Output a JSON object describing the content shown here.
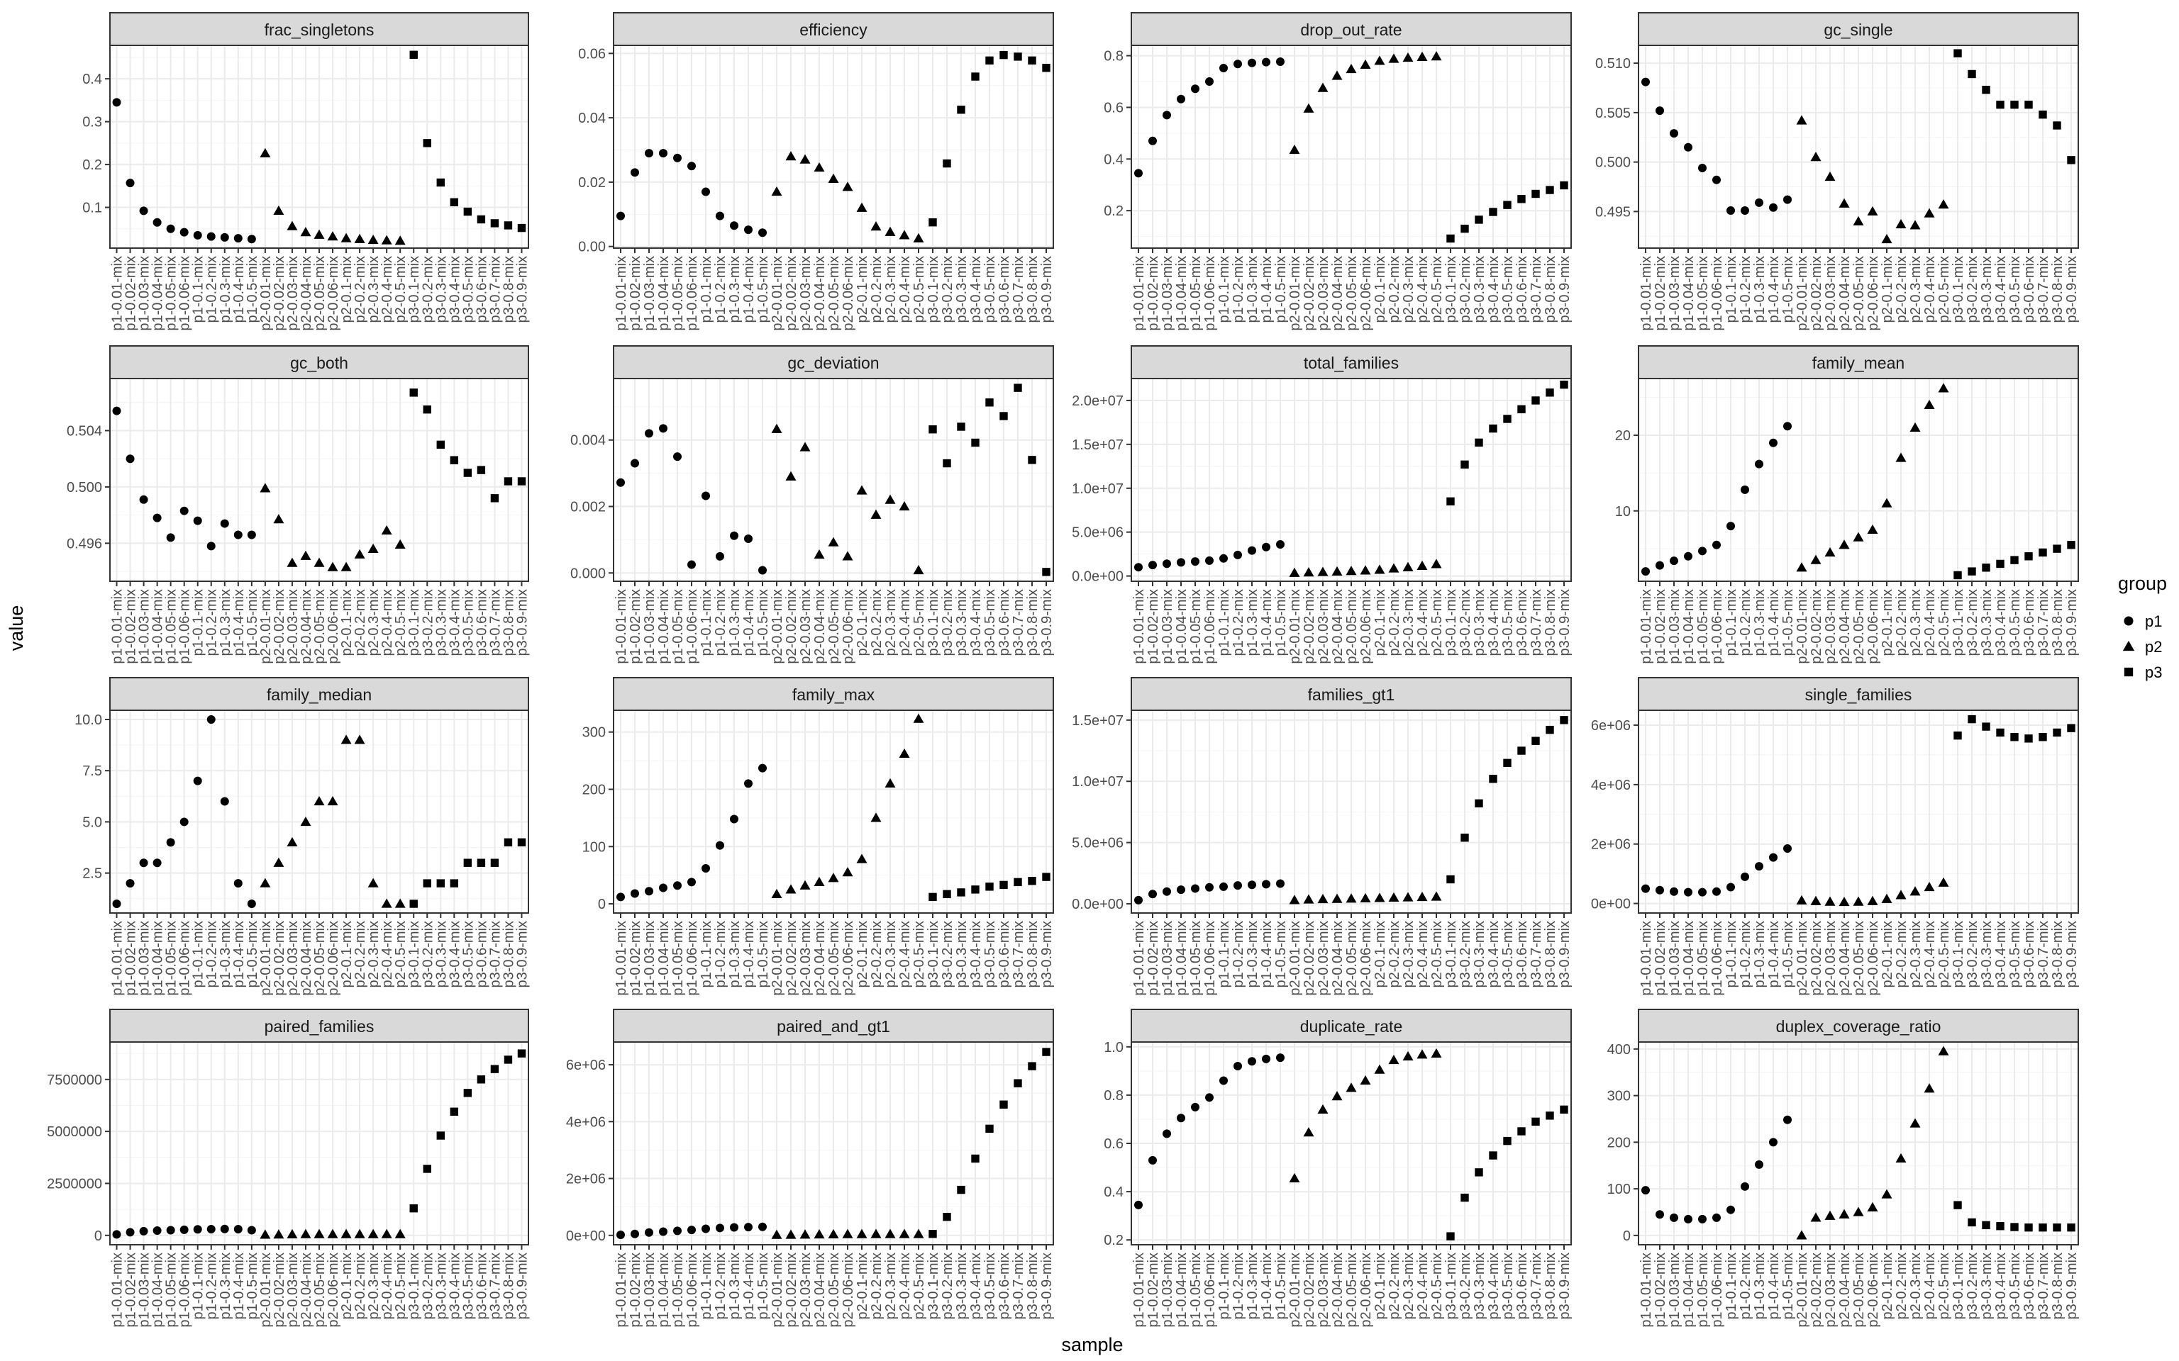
{
  "chart_data": {
    "type": "scatter",
    "layout": "faceted 4x4 grid, free y scales",
    "xlabel": "sample",
    "ylabel": "value",
    "legend": {
      "title": "group",
      "position": "right",
      "entries": [
        {
          "name": "p1",
          "shape": "circle"
        },
        {
          "name": "p2",
          "shape": "triangle"
        },
        {
          "name": "p3",
          "shape": "square"
        }
      ]
    },
    "grid": true,
    "categories": [
      "p1-0.01-mix",
      "p1-0.02-mix",
      "p1-0.03-mix",
      "p1-0.04-mix",
      "p1-0.05-mix",
      "p1-0.06-mix",
      "p1-0.1-mix",
      "p1-0.2-mix",
      "p1-0.3-mix",
      "p1-0.4-mix",
      "p1-0.5-mix",
      "p2-0.01-mix",
      "p2-0.02-mix",
      "p2-0.03-mix",
      "p2-0.04-mix",
      "p2-0.05-mix",
      "p2-0.06-mix",
      "p2-0.1-mix",
      "p2-0.2-mix",
      "p2-0.3-mix",
      "p2-0.4-mix",
      "p2-0.5-mix",
      "p3-0.1-mix",
      "p3-0.2-mix",
      "p3-0.3-mix",
      "p3-0.4-mix",
      "p3-0.5-mix",
      "p3-0.6-mix",
      "p3-0.7-mix",
      "p3-0.8-mix",
      "p3-0.9-mix"
    ],
    "groups": [
      "p1",
      "p1",
      "p1",
      "p1",
      "p1",
      "p1",
      "p1",
      "p1",
      "p1",
      "p1",
      "p1",
      "p2",
      "p2",
      "p2",
      "p2",
      "p2",
      "p2",
      "p2",
      "p2",
      "p2",
      "p2",
      "p2",
      "p3",
      "p3",
      "p3",
      "p3",
      "p3",
      "p3",
      "p3",
      "p3",
      "p3"
    ],
    "panels": [
      {
        "title": "frac_singletons",
        "ylim": [
          0.005,
          0.478
        ],
        "yticks": [
          0.1,
          0.2,
          0.3,
          0.4
        ],
        "ytick_labels": [
          "0.1",
          "0.2",
          "0.3",
          "0.4"
        ],
        "values": [
          0.345,
          0.157,
          0.092,
          0.065,
          0.05,
          0.042,
          0.035,
          0.032,
          0.03,
          0.028,
          0.026,
          0.226,
          0.092,
          0.056,
          0.042,
          0.036,
          0.032,
          0.028,
          0.026,
          0.024,
          0.023,
          0.022,
          0.456,
          0.25,
          0.158,
          0.112,
          0.09,
          0.072,
          0.063,
          0.058,
          0.052
        ]
      },
      {
        "title": "efficiency",
        "ylim": [
          -0.0005,
          0.0625
        ],
        "yticks": [
          0.0,
          0.02,
          0.04,
          0.06
        ],
        "ytick_labels": [
          "0.00",
          "0.02",
          "0.04",
          "0.06"
        ],
        "values": [
          0.0095,
          0.023,
          0.029,
          0.029,
          0.0275,
          0.025,
          0.017,
          0.0095,
          0.0065,
          0.0052,
          0.0043,
          0.017,
          0.028,
          0.027,
          0.0245,
          0.021,
          0.0185,
          0.012,
          0.0062,
          0.0045,
          0.0035,
          0.0025,
          0.0075,
          0.0258,
          0.0425,
          0.0528,
          0.0578,
          0.0595,
          0.059,
          0.0578,
          0.0555
        ]
      },
      {
        "title": "drop_out_rate",
        "ylim": [
          0.055,
          0.84
        ],
        "yticks": [
          0.2,
          0.4,
          0.6,
          0.8
        ],
        "ytick_labels": [
          "0.2",
          "0.4",
          "0.6",
          "0.8"
        ],
        "values": [
          0.345,
          0.47,
          0.57,
          0.632,
          0.672,
          0.7,
          0.752,
          0.768,
          0.772,
          0.775,
          0.777,
          0.435,
          0.595,
          0.675,
          0.722,
          0.748,
          0.765,
          0.78,
          0.788,
          0.792,
          0.795,
          0.797,
          0.092,
          0.13,
          0.165,
          0.195,
          0.222,
          0.245,
          0.265,
          0.28,
          0.298
        ]
      },
      {
        "title": "gc_single",
        "ylim": [
          0.4913,
          0.5118
        ],
        "yticks": [
          0.495,
          0.5,
          0.505,
          0.51
        ],
        "ytick_labels": [
          "0.495",
          "0.500",
          "0.505",
          "0.510"
        ],
        "values": [
          0.5081,
          0.5052,
          0.5029,
          0.5015,
          0.4994,
          0.4982,
          0.4951,
          0.4951,
          0.4959,
          0.4954,
          0.4962,
          0.5042,
          0.5005,
          0.4985,
          0.4958,
          0.494,
          0.495,
          0.4922,
          0.4937,
          0.4936,
          0.4948,
          0.4957,
          0.511,
          0.5089,
          0.5073,
          0.5058,
          0.5058,
          0.5058,
          0.5048,
          0.5037,
          0.5002
        ]
      },
      {
        "title": "gc_both",
        "ylim": [
          0.4933,
          0.5077
        ],
        "yticks": [
          0.496,
          0.5,
          0.504
        ],
        "ytick_labels": [
          "0.496",
          "0.500",
          "0.504"
        ],
        "values": [
          0.5054,
          0.502,
          0.4991,
          0.4978,
          0.4964,
          0.4983,
          0.4976,
          0.4958,
          0.4974,
          0.4966,
          0.4966,
          0.4999,
          0.4977,
          0.4946,
          0.4951,
          0.4946,
          0.4943,
          0.4943,
          0.4952,
          0.4956,
          0.4969,
          0.4959,
          0.5067,
          0.5055,
          0.503,
          0.5019,
          0.501,
          0.5012,
          0.4992,
          0.5004,
          0.5004
        ]
      },
      {
        "title": "gc_deviation",
        "ylim": [
          -0.00025,
          0.00585
        ],
        "yticks": [
          0.0,
          0.002,
          0.004
        ],
        "ytick_labels": [
          "0.000",
          "0.002",
          "0.004"
        ],
        "values": [
          0.00272,
          0.0033,
          0.0042,
          0.00435,
          0.0035,
          0.00025,
          0.00232,
          0.0005,
          0.00112,
          0.00103,
          8e-05,
          0.00433,
          0.0029,
          0.00378,
          0.00055,
          0.00092,
          0.0005,
          0.00248,
          0.00175,
          0.0022,
          0.002,
          8e-05,
          0.00432,
          0.0033,
          0.0044,
          0.00392,
          0.00513,
          0.00472,
          0.00557,
          0.0034,
          3e-05
        ]
      },
      {
        "title": "total_families",
        "ylim": [
          -600000,
          22500000
        ],
        "yticks": [
          0,
          5000000,
          10000000,
          15000000,
          20000000
        ],
        "ytick_labels": [
          "0.0e+00",
          "5.0e+06",
          "1.0e+07",
          "1.5e+07",
          "2.0e+07"
        ],
        "values": [
          1000000,
          1250000,
          1400000,
          1550000,
          1650000,
          1750000,
          2000000,
          2400000,
          2900000,
          3300000,
          3600000,
          350000,
          400000,
          450000,
          500000,
          560000,
          620000,
          700000,
          850000,
          1000000,
          1150000,
          1350000,
          8500000,
          12700000,
          15200000,
          16800000,
          17900000,
          19000000,
          20000000,
          20900000,
          21800000
        ]
      },
      {
        "title": "family_mean",
        "ylim": [
          0.7,
          27.5
        ],
        "yticks": [
          10,
          20
        ],
        "ytick_labels": [
          "10",
          "20"
        ],
        "values": [
          2.0,
          2.8,
          3.4,
          4.0,
          4.7,
          5.5,
          8.0,
          12.8,
          16.2,
          19.0,
          21.2,
          2.5,
          3.5,
          4.5,
          5.5,
          6.5,
          7.5,
          11.0,
          17.0,
          21.0,
          24.0,
          26.2,
          1.5,
          2.0,
          2.5,
          3.0,
          3.5,
          4.0,
          4.5,
          5.0,
          5.5
        ]
      },
      {
        "title": "family_median",
        "ylim": [
          0.55,
          10.45
        ],
        "yticks": [
          2.5,
          5.0,
          7.5,
          10.0
        ],
        "ytick_labels": [
          "2.5",
          "5.0",
          "7.5",
          "10.0"
        ],
        "values": [
          1,
          2,
          3,
          3,
          4,
          5,
          7,
          10,
          6,
          2,
          1,
          2,
          3,
          4,
          5,
          6,
          6,
          9,
          9,
          2,
          1,
          1,
          1,
          2,
          2,
          2,
          3,
          3,
          3,
          4,
          4
        ]
      },
      {
        "title": "family_max",
        "ylim": [
          -16,
          338
        ],
        "yticks": [
          0,
          100,
          200,
          300
        ],
        "ytick_labels": [
          "0",
          "100",
          "200",
          "300"
        ],
        "values": [
          12,
          18,
          22,
          28,
          32,
          38,
          62,
          102,
          148,
          210,
          237,
          17,
          25,
          32,
          38,
          45,
          55,
          78,
          150,
          210,
          262,
          323,
          12,
          17,
          20,
          25,
          30,
          33,
          38,
          40,
          47
        ]
      },
      {
        "title": "families_gt1",
        "ylim": [
          -750000,
          15800000
        ],
        "yticks": [
          0,
          5000000,
          10000000,
          15000000
        ],
        "ytick_labels": [
          "0.0e+00",
          "5.0e+06",
          "1.0e+07",
          "1.5e+07"
        ],
        "values": [
          300000,
          800000,
          1000000,
          1150000,
          1250000,
          1350000,
          1400000,
          1500000,
          1550000,
          1600000,
          1650000,
          300000,
          350000,
          380000,
          400000,
          420000,
          440000,
          470000,
          500000,
          520000,
          550000,
          580000,
          2000000,
          5400000,
          8200000,
          10200000,
          11500000,
          12500000,
          13300000,
          14200000,
          15000000
        ]
      },
      {
        "title": "single_families",
        "ylim": [
          -320000,
          6500000
        ],
        "yticks": [
          0,
          2000000,
          4000000,
          6000000
        ],
        "ytick_labels": [
          "0e+00",
          "2e+06",
          "4e+06",
          "6e+06"
        ],
        "values": [
          500000,
          450000,
          400000,
          380000,
          380000,
          400000,
          550000,
          900000,
          1250000,
          1550000,
          1850000,
          100000,
          80000,
          60000,
          50000,
          60000,
          80000,
          150000,
          280000,
          400000,
          550000,
          700000,
          5650000,
          6200000,
          5950000,
          5750000,
          5600000,
          5550000,
          5600000,
          5750000,
          5900000
        ]
      },
      {
        "title": "paired_families",
        "ylim": [
          -450000,
          9300000
        ],
        "yticks": [
          0,
          2500000,
          5000000,
          7500000
        ],
        "ytick_labels": [
          "0",
          "2500000",
          "5000000",
          "7500000"
        ],
        "values": [
          50000,
          150000,
          200000,
          230000,
          250000,
          270000,
          290000,
          300000,
          310000,
          300000,
          250000,
          30000,
          40000,
          50000,
          55000,
          55000,
          55000,
          55000,
          55000,
          55000,
          55000,
          55000,
          1300000,
          3200000,
          4800000,
          5950000,
          6850000,
          7500000,
          8000000,
          8450000,
          8750000
        ]
      },
      {
        "title": "paired_and_gt1",
        "ylim": [
          -330000,
          6800000
        ],
        "yticks": [
          0,
          2000000,
          4000000,
          6000000
        ],
        "ytick_labels": [
          "0e+00",
          "2e+06",
          "4e+06",
          "6e+06"
        ],
        "values": [
          20000,
          50000,
          100000,
          130000,
          160000,
          190000,
          230000,
          260000,
          280000,
          290000,
          300000,
          15000,
          20000,
          25000,
          30000,
          35000,
          40000,
          40000,
          45000,
          45000,
          45000,
          45000,
          50000,
          650000,
          1600000,
          2700000,
          3750000,
          4600000,
          5350000,
          5950000,
          6450000
        ]
      },
      {
        "title": "duplicate_rate",
        "ylim": [
          0.18,
          1.02
        ],
        "yticks": [
          0.2,
          0.4,
          0.6,
          0.8,
          1.0
        ],
        "ytick_labels": [
          "0.2",
          "0.4",
          "0.6",
          "0.8",
          "1.0"
        ],
        "values": [
          0.345,
          0.53,
          0.64,
          0.705,
          0.75,
          0.79,
          0.86,
          0.92,
          0.94,
          0.95,
          0.955,
          0.455,
          0.645,
          0.74,
          0.795,
          0.83,
          0.86,
          0.905,
          0.945,
          0.96,
          0.968,
          0.972,
          0.215,
          0.375,
          0.48,
          0.55,
          0.61,
          0.65,
          0.69,
          0.715,
          0.74
        ]
      },
      {
        "title": "duplex_coverage_ratio",
        "ylim": [
          -20,
          415
        ],
        "yticks": [
          0,
          100,
          200,
          300,
          400
        ],
        "ytick_labels": [
          "0",
          "100",
          "200",
          "300",
          "400"
        ],
        "values": [
          97,
          45,
          38,
          35,
          35,
          38,
          55,
          105,
          152,
          200,
          248,
          0,
          38,
          42,
          45,
          50,
          60,
          88,
          165,
          240,
          315,
          395,
          65,
          28,
          22,
          20,
          18,
          17,
          17,
          17,
          17
        ]
      }
    ]
  }
}
